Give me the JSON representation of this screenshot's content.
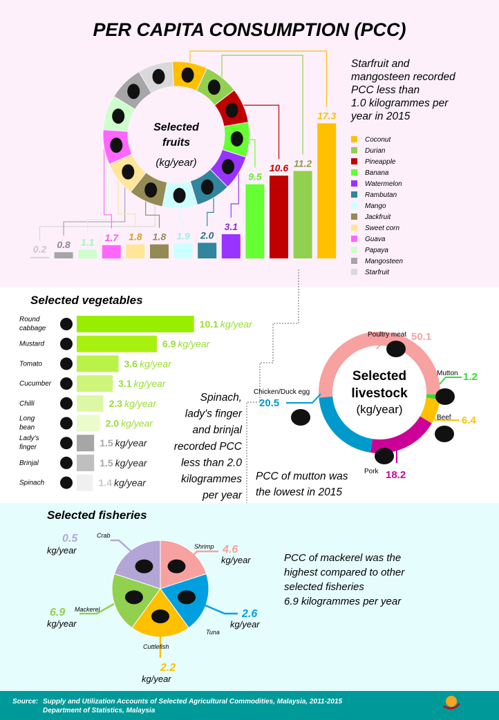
{
  "title": "PER CAPITA CONSUMPTION (PCC)",
  "colors": {
    "fruit_bg": "#fdf0fb",
    "fisheries_bg": "#e6fdfd",
    "footer_bg": "#009999"
  },
  "fruits": {
    "center_title_1": "Selected",
    "center_title_2": "fruits",
    "center_unit": "(kg/year)",
    "note": [
      "Starfruit and",
      "mangosteen recorded",
      "PCC less than",
      "1.0 kilogrammes per",
      "year in 2015"
    ],
    "legend": [
      "Coconut",
      "Durian",
      "Pineapple",
      "Banana",
      "Watermelon",
      "Rambutan",
      "Mango",
      "Jackfruit",
      "Sweet corn",
      "Guava",
      "Papaya",
      "Mangosteen",
      "Starfruit"
    ]
  },
  "vegetables": {
    "title": "Selected vegetables",
    "unit": "kg/year",
    "note": [
      "Spinach,",
      "lady's finger",
      "and brinjal",
      "recorded PCC",
      "less than 2.0",
      "kilogrammes",
      "per year"
    ]
  },
  "livestock": {
    "center_title_1": "Selected",
    "center_title_2": "livestock",
    "center_unit": "(kg/year)",
    "note": [
      "PCC  of mutton was",
      "the lowest in 2015"
    ]
  },
  "fisheries": {
    "title": "Selected fisheries",
    "unit": "kg/year",
    "note": [
      "PCC of mackerel was the",
      "highest compared to other",
      "selected fisheries",
      "6.9 kilogrammes  per year"
    ]
  },
  "footer": {
    "source_label": "Source:",
    "source_line_1": "Supply and Utilization Accounts  of Selected Agricultural Commodities, Malaysia, 2011-2015",
    "source_line_2": "Department of Statistics, Malaysia"
  },
  "chart_data": [
    {
      "type": "bar",
      "title": "Selected fruits",
      "ylabel": "(kg/year)",
      "categories": [
        "Starfruit",
        "Mangosteen",
        "Papaya",
        "Guava",
        "Sweet corn",
        "Jackfruit",
        "Mango",
        "Rambutan",
        "Watermelon",
        "Banana",
        "Pineapple",
        "Durian",
        "Coconut"
      ],
      "values": [
        0.2,
        0.8,
        1.1,
        1.7,
        1.8,
        1.8,
        1.9,
        2.0,
        3.1,
        9.5,
        10.6,
        11.2,
        17.3
      ],
      "value_labels": [
        "0.2",
        "0.8",
        "1.1",
        "1.7",
        "1.8",
        "1.8",
        "1.9",
        "2.0",
        "3.1",
        "9.5",
        "10.6",
        "11.2",
        "17.3"
      ],
      "colors": [
        "#d9d9d9",
        "#a6a6a6",
        "#ccffcc",
        "#ff66ff",
        "#ffe699",
        "#948a54",
        "#ccffff",
        "#31859c",
        "#9933ff",
        "#66ff33",
        "#c00000",
        "#92d050",
        "#ffc000"
      ],
      "label_colors": [
        "#c8c8c8",
        "#8c8c8c",
        "#a8f0c0",
        "#ff55ee",
        "#d4a020",
        "#9a8a5a",
        "#a0f0e8",
        "#2a6f80",
        "#8833cc",
        "#66ee33",
        "#c00000",
        "#8aa050",
        "#ffc000"
      ],
      "legend_position": "right",
      "grid": false
    },
    {
      "type": "bar",
      "orientation": "horizontal",
      "title": "Selected vegetables",
      "categories": [
        "Round cabbage",
        "Mustard",
        "Tomato",
        "Cucumber",
        "Chilli",
        "Long bean",
        "Lady's finger",
        "Brinjal",
        "Spinach"
      ],
      "values": [
        10.1,
        6.9,
        3.6,
        3.1,
        2.3,
        2.0,
        1.5,
        1.5,
        1.4
      ],
      "value_labels": [
        "10.1",
        "6.9",
        "3.6",
        "3.1",
        "2.3",
        "2.0",
        "1.5",
        "1.5",
        "1.4"
      ],
      "colors": [
        "#99ee00",
        "#a8f010",
        "#bbf24a",
        "#ccf57a",
        "#ddf8a5",
        "#ecfbcc",
        "#a6a6a6",
        "#bfbfbf",
        "#f0f0f0"
      ],
      "label_colors": [
        "#99dd33",
        "#99dd33",
        "#99dd33",
        "#99dd33",
        "#99dd33",
        "#99dd33",
        "#a6a6a6",
        "#a6a6a6",
        "#c8c8c8"
      ],
      "grid": false
    },
    {
      "type": "pie",
      "donut": true,
      "title": "Selected livestock",
      "unit": "(kg/year)",
      "categories": [
        "Poultry meat",
        "Mutton",
        "Beef",
        "Pork",
        "Chicken/Duck egg"
      ],
      "values": [
        50.1,
        1.2,
        6.4,
        18.2,
        20.5
      ],
      "value_labels": [
        "50.1",
        "1.2",
        "6.4",
        "18.2",
        "20.5"
      ],
      "colors": [
        "#f7a1a1",
        "#33dd33",
        "#ffc000",
        "#cc0099",
        "#0099cc"
      ]
    },
    {
      "type": "pie",
      "title": "Selected fisheries",
      "categories": [
        "Shrimp",
        "Tuna",
        "Cuttlefish",
        "Mackerel",
        "Crab"
      ],
      "values": [
        4.6,
        2.6,
        2.2,
        6.9,
        0.5
      ],
      "value_labels": [
        "4.6",
        "2.6",
        "2.2",
        "6.9",
        "0.5"
      ],
      "colors": [
        "#f7a1a1",
        "#00a0e0",
        "#ffc000",
        "#92d050",
        "#b3a6d6"
      ],
      "equal_slices": true
    }
  ]
}
